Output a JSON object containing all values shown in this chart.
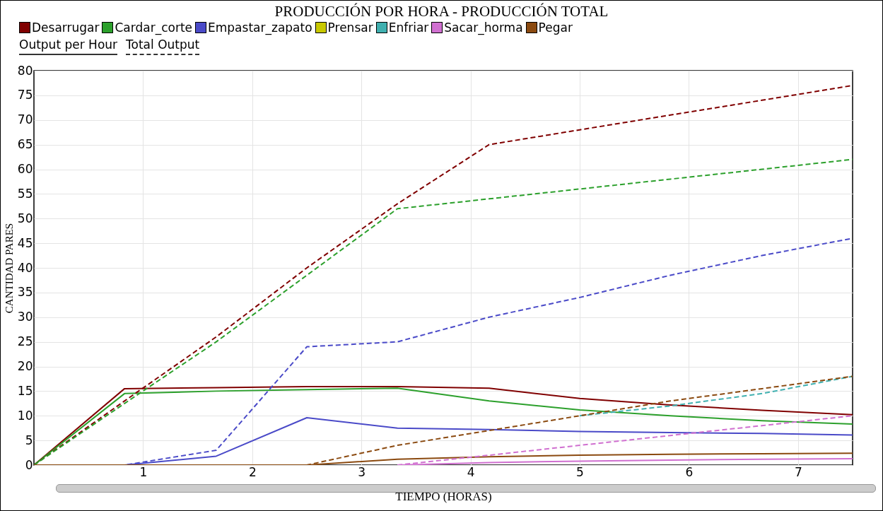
{
  "chart_data": {
    "type": "line",
    "title": "PRODUCCIÓN POR HORA - PRODUCCIÓN TOTAL",
    "xlabel": "TIEMPO (HORAS)",
    "ylabel": "CANTIDAD PARES",
    "x": [
      0,
      0.83,
      1.67,
      2.5,
      3.33,
      4.17,
      5,
      5.83,
      6.67,
      7.5
    ],
    "xlim": [
      0,
      7.5
    ],
    "xticks": [
      1,
      2,
      3,
      4,
      5,
      6,
      7
    ],
    "ylim": [
      0,
      80
    ],
    "yticks": [
      0,
      5,
      10,
      15,
      20,
      25,
      30,
      35,
      40,
      45,
      50,
      55,
      60,
      65,
      70,
      75,
      80
    ],
    "grid": true,
    "legend": "top left",
    "marker": "none",
    "annotations": [
      "Output per Hour",
      "Total Output"
    ],
    "series": [
      {
        "name": "Desarrugar",
        "color": "#800000",
        "line_style": "solid",
        "values": [
          0,
          15.5,
          15.7,
          15.9,
          15.9,
          15.6,
          13.5,
          12.2,
          11.1,
          10.2
        ]
      },
      {
        "name": "Cardar_corte",
        "color": "#2ca02c",
        "line_style": "solid",
        "values": [
          0,
          14.5,
          15,
          15.3,
          15.6,
          13,
          11.2,
          10,
          9,
          8.3
        ]
      },
      {
        "name": "Empastar_zapato",
        "color": "#4a4ac8",
        "line_style": "solid",
        "values": [
          0,
          0,
          1.8,
          9.6,
          7.5,
          7.2,
          6.8,
          6.6,
          6.4,
          6.1
        ]
      },
      {
        "name": "Prensar",
        "color": "#c8c800",
        "line_style": "solid",
        "values": [
          null,
          null,
          null,
          null,
          null,
          null,
          null,
          null,
          null,
          null
        ]
      },
      {
        "name": "Enfriar",
        "color": "#40b0b0",
        "line_style": "solid",
        "values": [
          null,
          null,
          null,
          null,
          null,
          null,
          null,
          null,
          null,
          null
        ]
      },
      {
        "name": "Sacar_horma",
        "color": "#d070d0",
        "line_style": "solid",
        "values": [
          null,
          null,
          null,
          null,
          0,
          0.5,
          0.8,
          1,
          1.2,
          1.3
        ]
      },
      {
        "name": "Pegar",
        "color": "#8b4a10",
        "line_style": "solid",
        "values": [
          0,
          0,
          0,
          0,
          1.2,
          1.7,
          2,
          2.2,
          2.3,
          2.4
        ]
      },
      {
        "color": "#800000",
        "line_style": "dashed",
        "values": [
          0,
          13,
          26,
          40,
          53,
          65,
          68,
          71,
          74,
          77
        ]
      },
      {
        "color": "#2ca02c",
        "line_style": "dashed",
        "values": [
          0,
          12.5,
          25,
          38.5,
          52,
          54,
          56,
          58,
          60,
          62
        ]
      },
      {
        "color": "#4a4ac8",
        "line_style": "dashed",
        "values": [
          0,
          0,
          3,
          24,
          25,
          30,
          34,
          38.5,
          42.5,
          46
        ]
      },
      {
        "color": "#c8c800",
        "line_style": "dashed",
        "values": [
          null,
          null,
          null,
          null,
          null,
          null,
          null,
          null,
          null,
          null
        ]
      },
      {
        "color": "#40b0b0",
        "line_style": "dashed",
        "values": [
          null,
          null,
          null,
          null,
          null,
          null,
          10,
          12,
          14.5,
          18
        ]
      },
      {
        "color": "#d070d0",
        "line_style": "dashed",
        "values": [
          null,
          null,
          null,
          null,
          0,
          2,
          4,
          6,
          8,
          10
        ]
      },
      {
        "color": "#8b4a10",
        "line_style": "dashed",
        "values": [
          0,
          0,
          0,
          0,
          4,
          7,
          10,
          13,
          15.5,
          18
        ]
      }
    ]
  }
}
